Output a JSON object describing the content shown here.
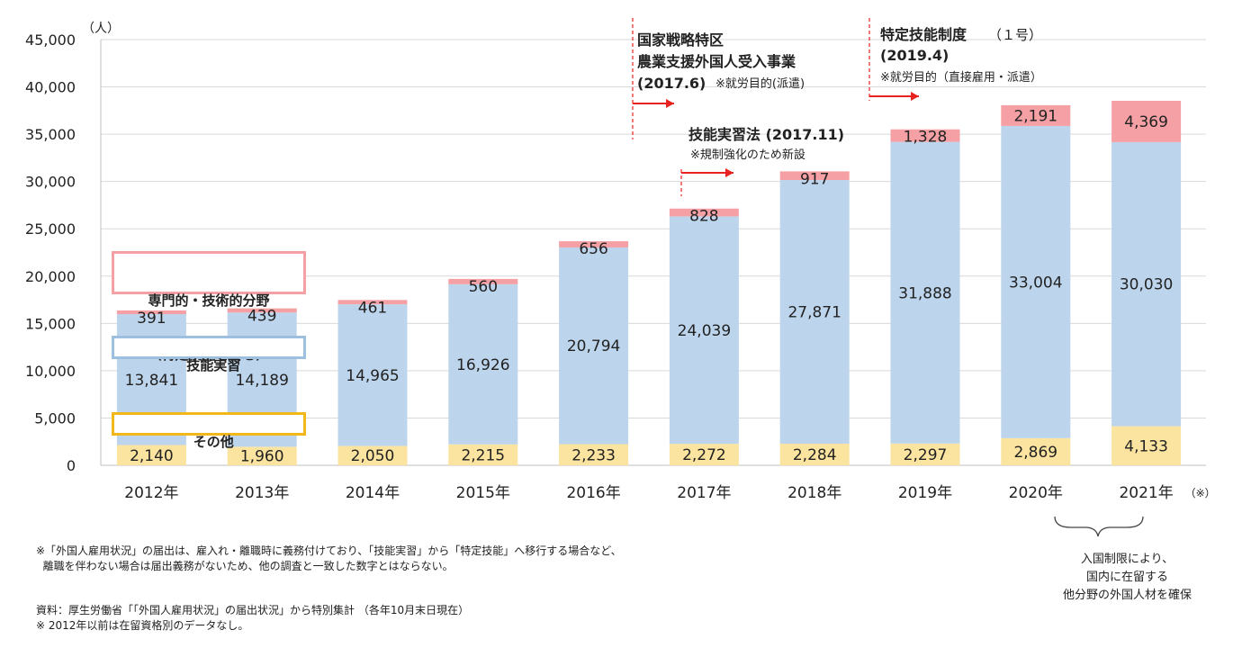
{
  "chart_data": {
    "type": "bar",
    "stacked": true,
    "unit_label": "（人）",
    "categories": [
      "2012年",
      "2013年",
      "2014年",
      "2015年",
      "2016年",
      "2017年",
      "2018年",
      "2019年",
      "2020年",
      "2021年"
    ],
    "category_suffix_2021": "（※）",
    "ylim": [
      0,
      45000
    ],
    "yticks": [
      "0",
      "5,000",
      "10,000",
      "15,000",
      "20,000",
      "25,000",
      "30,000",
      "35,000",
      "40,000",
      "45,000"
    ],
    "ytick_values": [
      0,
      5000,
      10000,
      15000,
      20000,
      25000,
      30000,
      35000,
      40000,
      45000
    ],
    "grid": true,
    "series": [
      {
        "name": "その他",
        "color": "#fbe4a0",
        "values": [
          2140,
          1960,
          2050,
          2215,
          2233,
          2272,
          2284,
          2297,
          2869,
          4133
        ],
        "labels": [
          "2,140",
          "1,960",
          "2,050",
          "2,215",
          "2,233",
          "2,272",
          "2,284",
          "2,297",
          "2,869",
          "4,133"
        ]
      },
      {
        "name": "技能実習",
        "color": "#bdd5ec",
        "values": [
          13841,
          14189,
          14965,
          16926,
          20794,
          24039,
          27871,
          31888,
          33004,
          30030
        ],
        "labels": [
          "13,841",
          "14,189",
          "14,965",
          "16,926",
          "20,794",
          "24,039",
          "27,871",
          "31,888",
          "33,004",
          "30,030"
        ]
      },
      {
        "name": "専門的・技術的分野（特定技能を含む）",
        "color": "#f4a0a4",
        "values": [
          391,
          439,
          461,
          560,
          656,
          828,
          917,
          1328,
          2191,
          4369
        ],
        "labels": [
          "391",
          "439",
          "461",
          "560",
          "656",
          "828",
          "917",
          "1,328",
          "2,191",
          "4,369"
        ]
      }
    ]
  },
  "legend": {
    "professional_line1": "専門的・技術的分野",
    "professional_line2": "（特定技能を含む）",
    "professional_color": "#f4a0a4",
    "trainee": "技能実習",
    "trainee_color": "#9dbfe0",
    "other": "その他",
    "other_color": "#f2b81a"
  },
  "annotations": {
    "zone_title_1": "国家戦略特区",
    "zone_title_2": "農業支援外国人受入事業",
    "zone_date": "(2017.6)",
    "zone_note": "※就労目的(派遣)",
    "trainee_law": "技能実習法 (2017.11)",
    "trainee_law_note": "※規制強化のため新設",
    "ssw_title": "特定技能制度",
    "ssw_title_suffix": "（１号）",
    "ssw_date": "(2019.4)",
    "ssw_note": "※就労目的（直接雇用・派遣）",
    "arrow_color": "#e8231f",
    "brace_note": "入国制限により、\n国内に在留する\n他分野の外国人材を確保"
  },
  "footnotes": {
    "note1": "※「外国人雇用状況」の届出は、雇入れ・離職時に義務付けており、「技能実習」から「特定技能」へ移行する場合など、\n  離職を伴わない場合は届出義務がないため、他の調査と一致した数字とはならない。",
    "source": "資料：厚生労働省「「外国人雇用状況」の届出状況」から特別集計 （各年10月末日現在）",
    "note2": "※ 2012年以前は在留資格別のデータなし。"
  }
}
